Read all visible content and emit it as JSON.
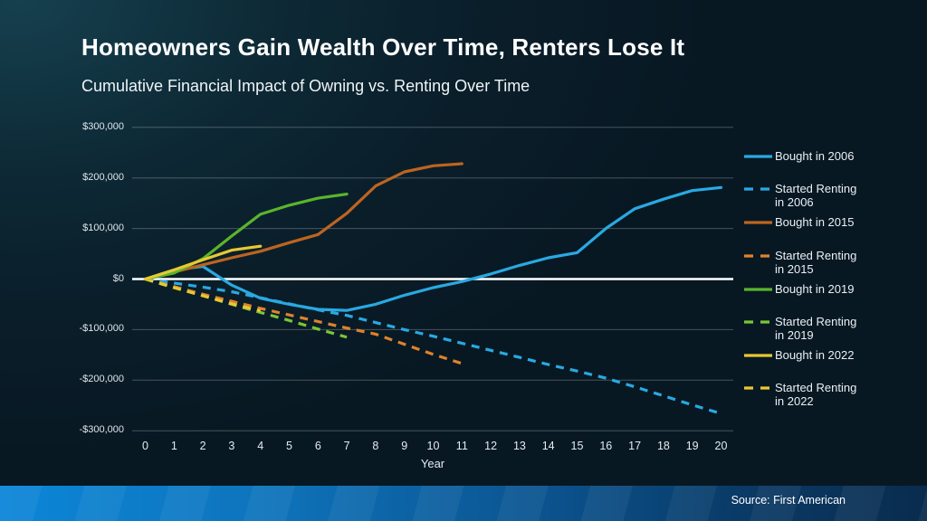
{
  "header": {
    "title": "Homeowners Gain Wealth Over Time, Renters Lose It",
    "subtitle": "Cumulative Financial Impact of Owning vs. Renting Over Time"
  },
  "footer": {
    "source": "Source: First American"
  },
  "colors": {
    "background": "#0a1e2a",
    "background_highlight": "#16404f",
    "zero_line": "#ffffff",
    "gridline": "rgba(255,255,255,0.25)",
    "blue": "#29a9e1",
    "orange_solid": "#bd6420",
    "orange_dashed": "#df822b",
    "green_solid": "#5ab42c",
    "green_dashed": "#79c636",
    "yellow": "#e9c832",
    "footer_left": "#0c86d8",
    "footer_right": "#092c4e"
  },
  "legend": {
    "items": [
      {
        "lines": [
          "Bought in 2006"
        ],
        "color": "#29a9e1",
        "dash": false
      },
      {
        "lines": [
          "Started Renting",
          "in 2006"
        ],
        "color": "#29a9e1",
        "dash": true
      },
      {
        "lines": [
          "Bought in 2015"
        ],
        "color": "#bd6420",
        "dash": false
      },
      {
        "lines": [
          "Started Renting",
          "in 2015"
        ],
        "color": "#df822b",
        "dash": true
      },
      {
        "lines": [
          "Bought in 2019"
        ],
        "color": "#5ab42c",
        "dash": false
      },
      {
        "lines": [
          "Started Renting",
          "in 2019"
        ],
        "color": "#79c636",
        "dash": true
      },
      {
        "lines": [
          "Bought in 2022"
        ],
        "color": "#e9c832",
        "dash": false
      },
      {
        "lines": [
          "Started Renting",
          "in 2022"
        ],
        "color": "#e9c832",
        "dash": true
      }
    ]
  },
  "chart_data": {
    "type": "line",
    "title": "Homeowners Gain Wealth Over Time, Renters Lose It",
    "subtitle": "Cumulative Financial Impact of Owning vs. Renting Over Time",
    "xlabel": "Year",
    "ylabel": "",
    "xlim": [
      0,
      20
    ],
    "ylim": [
      -300000,
      300000
    ],
    "x_ticks": [
      0,
      1,
      2,
      3,
      4,
      5,
      6,
      7,
      8,
      9,
      10,
      11,
      12,
      13,
      14,
      15,
      16,
      17,
      18,
      19,
      20
    ],
    "y_ticks": [
      {
        "label": "$300,000",
        "value": 300000
      },
      {
        "label": "$200,000",
        "value": 200000
      },
      {
        "label": "$100,000",
        "value": 100000
      },
      {
        "label": "$0",
        "value": 0
      },
      {
        "label": "-$100,000",
        "value": -100000
      },
      {
        "label": "-$200,000",
        "value": -200000
      },
      {
        "label": "-$300,000",
        "value": -300000
      }
    ],
    "grid": "horizontal",
    "zero_line": true,
    "legend_position": "right",
    "series": [
      {
        "name": "Started Renting in 2006",
        "color": "#29a9e1",
        "dash": true,
        "points": [
          [
            0,
            0
          ],
          [
            1,
            -8000
          ],
          [
            2,
            -16000
          ],
          [
            3,
            -25000
          ],
          [
            4,
            -37000
          ],
          [
            5,
            -49000
          ],
          [
            6,
            -61000
          ],
          [
            7,
            -72000
          ],
          [
            8,
            -86000
          ],
          [
            9,
            -100000
          ],
          [
            10,
            -113000
          ],
          [
            11,
            -127000
          ],
          [
            12,
            -141000
          ],
          [
            13,
            -155000
          ],
          [
            14,
            -169000
          ],
          [
            15,
            -182000
          ],
          [
            16,
            -196000
          ],
          [
            17,
            -213000
          ],
          [
            18,
            -231000
          ],
          [
            19,
            -249000
          ],
          [
            20,
            -266000
          ]
        ]
      },
      {
        "name": "Started Renting in 2015",
        "color": "#df822b",
        "dash": true,
        "points": [
          [
            0,
            0
          ],
          [
            1,
            -15000
          ],
          [
            2,
            -30000
          ],
          [
            3,
            -44000
          ],
          [
            4,
            -58000
          ],
          [
            5,
            -71000
          ],
          [
            6,
            -84000
          ],
          [
            7,
            -97000
          ],
          [
            8,
            -109000
          ],
          [
            9,
            -129000
          ],
          [
            10,
            -149000
          ],
          [
            11,
            -167000
          ]
        ]
      },
      {
        "name": "Started Renting in 2019",
        "color": "#79c636",
        "dash": true,
        "points": [
          [
            0,
            0
          ],
          [
            1,
            -17000
          ],
          [
            2,
            -33000
          ],
          [
            3,
            -50000
          ],
          [
            4,
            -66000
          ],
          [
            5,
            -82000
          ],
          [
            6,
            -99000
          ],
          [
            7,
            -115000
          ]
        ]
      },
      {
        "name": "Started Renting in 2022",
        "color": "#e9c832",
        "dash": true,
        "points": [
          [
            0,
            0
          ],
          [
            1,
            -17000
          ],
          [
            2,
            -33000
          ],
          [
            3,
            -49000
          ],
          [
            4,
            -63000
          ]
        ]
      },
      {
        "name": "Bought in 2006",
        "color": "#29a9e1",
        "dash": false,
        "points": [
          [
            0,
            0
          ],
          [
            1,
            18000
          ],
          [
            2,
            25000
          ],
          [
            3,
            -12000
          ],
          [
            4,
            -38000
          ],
          [
            5,
            -50000
          ],
          [
            6,
            -60000
          ],
          [
            7,
            -62000
          ],
          [
            8,
            -50000
          ],
          [
            9,
            -32000
          ],
          [
            10,
            -17000
          ],
          [
            11,
            -5000
          ],
          [
            12,
            10000
          ],
          [
            13,
            27000
          ],
          [
            14,
            42000
          ],
          [
            15,
            52000
          ],
          [
            16,
            100000
          ],
          [
            17,
            139000
          ],
          [
            18,
            158000
          ],
          [
            19,
            175000
          ],
          [
            20,
            181000
          ]
        ]
      },
      {
        "name": "Bought in 2015",
        "color": "#bd6420",
        "dash": false,
        "points": [
          [
            0,
            0
          ],
          [
            1,
            14000
          ],
          [
            2,
            28000
          ],
          [
            3,
            42000
          ],
          [
            4,
            55000
          ],
          [
            5,
            72000
          ],
          [
            6,
            88000
          ],
          [
            7,
            130000
          ],
          [
            8,
            184000
          ],
          [
            9,
            212000
          ],
          [
            10,
            224000
          ],
          [
            11,
            228000
          ]
        ]
      },
      {
        "name": "Bought in 2019",
        "color": "#5ab42c",
        "dash": false,
        "points": [
          [
            0,
            0
          ],
          [
            1,
            12000
          ],
          [
            2,
            40000
          ],
          [
            3,
            85000
          ],
          [
            4,
            128000
          ],
          [
            5,
            146000
          ],
          [
            6,
            160000
          ],
          [
            7,
            168000
          ]
        ]
      },
      {
        "name": "Bought in 2022",
        "color": "#e9c832",
        "dash": false,
        "points": [
          [
            0,
            0
          ],
          [
            1,
            18000
          ],
          [
            2,
            38000
          ],
          [
            3,
            57000
          ],
          [
            4,
            65000
          ]
        ]
      }
    ]
  }
}
